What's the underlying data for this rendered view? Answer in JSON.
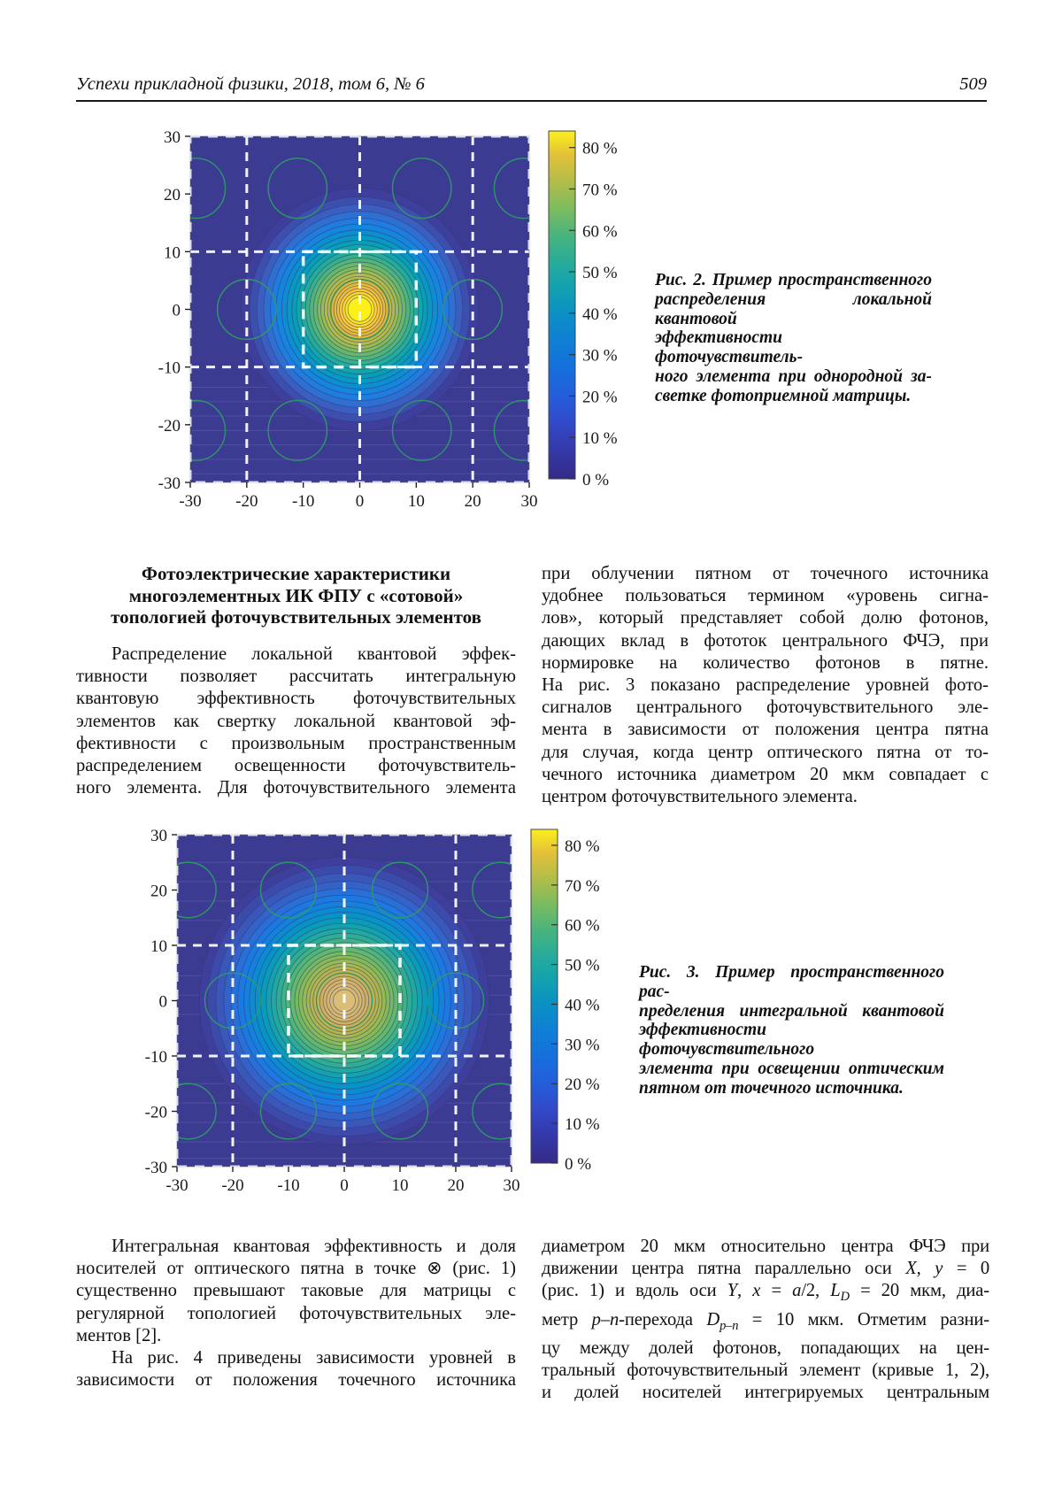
{
  "header": {
    "journal_title": "Успехи прикладной физики, 2018, том 6, № 6",
    "page_number": "509"
  },
  "section": {
    "heading_lines": [
      "Фотоэлектрические характеристики",
      "многоэлементных ИК ФПУ с «сотовой»",
      "топологией фоточувствительных элементов"
    ],
    "left_column_lines": [
      "Распределение локальной квантовой эффек-",
      "тивности позволяет рассчитать интегральную",
      "квантовую эффективность фоточувствительных",
      "элементов как свертку локальной квантовой эф-",
      "фективности с произвольным пространственным",
      "распределением освещенности фоточувствитель-",
      "ного элемента. Для фоточувствительного элемента"
    ],
    "right_column_lines": [
      "при облучении пятном от точечного источника",
      "удобнее пользоваться термином «уровень сигна-",
      "лов», который представляет собой долю фотонов,",
      "дающих вклад в фототок центрального ФЧЭ, при",
      "нормировке на количество фотонов в пятне.",
      "На рис. 3 показано распределение уровней фото-",
      "сигналов центрального фоточувствительного эле-",
      "мента в зависимости от положения центра пятна",
      "для случая, когда центр оптического пятна от то-",
      "чечного источника диаметром 20 мкм совпадает с",
      "центром фоточувствительного элемента."
    ],
    "bottom_left_para1_lines": [
      "Интегральная квантовая эффективность и доля",
      "носителей от оптического пятна в точке ⊗ (рис. 1)",
      "существенно превышают таковые для матрицы с",
      "регулярной топологией фоточувствительных эле-",
      "ментов [2]."
    ],
    "bottom_left_para2_lines": [
      "На рис. 4 приведены зависимости уровней в",
      "зависимости от положения точечного источника"
    ],
    "bottom_right_lines": [
      "диаметром 20 мкм относительно центра ФЧЭ при",
      "движении центра пятна параллельно оси <i>X</i>, <i>y</i> = 0",
      "(рис. 1) и вдоль оси <i>Y</i>, <i>x</i> = <i>a</i>/2, <i>L<sub>D</sub></i> = 20 мкм, диа-",
      "метр <i>p</i>–<i>n</i>-перехода <i>D<sub>p–n</sub></i> = 10 мкм. Отметим разни-",
      "цу между долей фотонов, попадающих на цен-",
      "тральный фоточувствительный элемент (кривые 1, 2),",
      "и долей носителей интегрируемых центральным"
    ]
  },
  "fig2_caption_lines": [
    "Рис. 2. Пример пространственного",
    "распределения локальной квантовой",
    "эффективности фоточувствитель-",
    "ного элемента при однородной за-",
    "светке фотоприемной матрицы."
  ],
  "fig3_caption_lines": [
    "Рис. 3. Пример пространственного рас-",
    "пределения интегральной квантовой",
    "эффективности фоточувствительного",
    "элемента при освещении оптическим",
    "пятном от точечного источника."
  ],
  "chart_data": [
    {
      "id": "fig2",
      "type": "contour",
      "description": "Пространственное распределение локальной квантовой эффективности фоточувствительного элемента; пик ~85 % в центре (0,0), сотовая топология элементов",
      "xlim": [
        -30,
        30
      ],
      "ylim": [
        -30,
        30
      ],
      "x_ticks": [
        -30,
        -20,
        -10,
        0,
        10,
        20,
        30
      ],
      "y_ticks": [
        30,
        20,
        10,
        0,
        -10,
        -20,
        -30
      ],
      "background": "#3b3b92",
      "peak_percent": 85,
      "colorbar": {
        "scale_max": 84,
        "ticks": [
          {
            "value": 80,
            "label": "80 %"
          },
          {
            "value": 70,
            "label": "70 %"
          },
          {
            "value": 60,
            "label": "60 %"
          },
          {
            "value": 50,
            "label": "50 %"
          },
          {
            "value": 40,
            "label": "40 %"
          },
          {
            "value": 30,
            "label": "30 %"
          },
          {
            "value": 20,
            "label": "20 %"
          },
          {
            "value": 10,
            "label": "10 %"
          },
          {
            "value": 0,
            "label": "0 %"
          }
        ],
        "gradient": [
          [
            "0",
            "#352a87"
          ],
          [
            "0.08",
            "#3438a8"
          ],
          [
            "0.16",
            "#3249c8"
          ],
          [
            "0.24",
            "#245edb"
          ],
          [
            "0.32",
            "#166fdc"
          ],
          [
            "0.4",
            "#0f80d4"
          ],
          [
            "0.48",
            "#0b91c3"
          ],
          [
            "0.55",
            "#13a1b0"
          ],
          [
            "0.62",
            "#27ab9b"
          ],
          [
            "0.7",
            "#49b47d"
          ],
          [
            "0.78",
            "#7ebc5e"
          ],
          [
            "0.86",
            "#b6bd48"
          ],
          [
            "0.93",
            "#e3c139"
          ],
          [
            "1",
            "#fbef1c"
          ]
        ]
      },
      "rings": [
        [
          21,
          "#3e3f9c"
        ],
        [
          19.5,
          "#3c4fae"
        ],
        [
          18.2,
          "#3a5fc0"
        ],
        [
          17,
          "#2e6fd2"
        ],
        [
          15.8,
          "#217ce0"
        ],
        [
          14.8,
          "#1585dd"
        ],
        [
          13.8,
          "#0e8ed2"
        ],
        [
          12.9,
          "#0997c4"
        ],
        [
          12,
          "#079fb8"
        ],
        [
          11.2,
          "#12a6ab"
        ],
        [
          10.4,
          "#23ac9c"
        ],
        [
          9.6,
          "#38b18b"
        ],
        [
          8.9,
          "#50b57a"
        ],
        [
          8.2,
          "#68b86b"
        ],
        [
          7.5,
          "#81bb5e"
        ],
        [
          6.9,
          "#99bc53"
        ],
        [
          6.3,
          "#b0bc4b"
        ],
        [
          5.7,
          "#c5bb45"
        ],
        [
          5.1,
          "#d8b940"
        ],
        [
          4.6,
          "#e8ba3b"
        ],
        [
          4.1,
          "#f3bf38"
        ],
        [
          3.6,
          "#fac937"
        ],
        [
          3.1,
          "#fdd62e"
        ],
        [
          2.6,
          "#fde423"
        ],
        [
          2.1,
          "#fbf01a"
        ]
      ],
      "green_circle_radius": 5.2,
      "green_circles": [
        [
          -29,
          21
        ],
        [
          -11,
          21
        ],
        [
          11,
          21
        ],
        [
          29,
          21
        ],
        [
          -20,
          0
        ],
        [
          0,
          0
        ],
        [
          20,
          0
        ],
        [
          -29,
          -21
        ],
        [
          -11,
          -21
        ],
        [
          11,
          -21
        ],
        [
          29,
          -21
        ]
      ],
      "dashed_vlines": [
        -20,
        0,
        20
      ],
      "dashed_hlines": [
        10,
        -10
      ],
      "dashed_square": {
        "x": -10,
        "y": -10,
        "w": 20,
        "h": 20
      },
      "faint_hlines": [
        -13.5,
        -16,
        -18.5,
        -21,
        -23.5,
        -26,
        -28.5
      ]
    },
    {
      "id": "fig3",
      "type": "contour",
      "description": "Пространственное распределение интегральной квантовой эффективности фоточувствительного элемента при освещении пятном от точечного источника; пик ~57 % в центре (0,0)",
      "xlim": [
        -30,
        30
      ],
      "ylim": [
        -30,
        30
      ],
      "x_ticks": [
        -30,
        -20,
        -10,
        0,
        10,
        20,
        30
      ],
      "y_ticks": [
        30,
        20,
        10,
        0,
        -10,
        -20,
        -30
      ],
      "background": "#3b3b92",
      "peak_percent": 57,
      "colorbar": {
        "scale_max": 84,
        "ticks": [
          {
            "value": 80,
            "label": "80 %"
          },
          {
            "value": 70,
            "label": "70 %"
          },
          {
            "value": 60,
            "label": "60 %"
          },
          {
            "value": 50,
            "label": "50 %"
          },
          {
            "value": 40,
            "label": "40 %"
          },
          {
            "value": 30,
            "label": "30 %"
          },
          {
            "value": 20,
            "label": "20 %"
          },
          {
            "value": 10,
            "label": "10 %"
          },
          {
            "value": 0,
            "label": "0 %"
          }
        ],
        "gradient": [
          [
            "0",
            "#352a87"
          ],
          [
            "0.08",
            "#3438a8"
          ],
          [
            "0.16",
            "#3249c8"
          ],
          [
            "0.24",
            "#245edb"
          ],
          [
            "0.32",
            "#166fdc"
          ],
          [
            "0.4",
            "#0f80d4"
          ],
          [
            "0.48",
            "#0b91c3"
          ],
          [
            "0.55",
            "#13a1b0"
          ],
          [
            "0.62",
            "#27ab9b"
          ],
          [
            "0.7",
            "#49b47d"
          ],
          [
            "0.78",
            "#7ebc5e"
          ],
          [
            "0.86",
            "#b6bd48"
          ],
          [
            "0.93",
            "#e3c139"
          ],
          [
            "1",
            "#fbef1c"
          ]
        ]
      },
      "rings": [
        [
          26,
          "#3e3f9c"
        ],
        [
          24.5,
          "#3c4bab"
        ],
        [
          23,
          "#3a57ba"
        ],
        [
          21.6,
          "#3363c9"
        ],
        [
          20.3,
          "#296fd8"
        ],
        [
          19.1,
          "#1d79e2"
        ],
        [
          18,
          "#1482dd"
        ],
        [
          17,
          "#0d8bd2"
        ],
        [
          16,
          "#0893c6"
        ],
        [
          15,
          "#0a9bba"
        ],
        [
          14,
          "#13a2ae"
        ],
        [
          13.1,
          "#20a8a1"
        ],
        [
          12.2,
          "#2ead94"
        ],
        [
          11.3,
          "#3fb286"
        ],
        [
          10.5,
          "#50b579"
        ],
        [
          9.7,
          "#62b86d"
        ],
        [
          8.9,
          "#74b962"
        ],
        [
          8.2,
          "#86ba59"
        ],
        [
          7.5,
          "#97ba52"
        ],
        [
          6.8,
          "#a6b84e"
        ],
        [
          6.2,
          "#b3b54e"
        ],
        [
          5.6,
          "#bfb254"
        ],
        [
          5.0,
          "#c8b05b"
        ],
        [
          4.4,
          "#ceb162"
        ],
        [
          3.8,
          "#d3b368"
        ],
        [
          3.2,
          "#d6b66d"
        ],
        [
          2.6,
          "#d8ba72"
        ],
        [
          2.0,
          "#dabd76"
        ]
      ],
      "green_circle_radius": 5,
      "green_circles": [
        [
          -28,
          20
        ],
        [
          -10,
          20
        ],
        [
          10,
          20
        ],
        [
          28,
          20
        ],
        [
          -20,
          0
        ],
        [
          0,
          0
        ],
        [
          20,
          0
        ],
        [
          -28,
          -20
        ],
        [
          -10,
          -20
        ],
        [
          10,
          -20
        ],
        [
          28,
          -20
        ]
      ],
      "dashed_vlines": [
        -20,
        0,
        20
      ],
      "dashed_hlines": [
        10,
        -10
      ],
      "dashed_square": {
        "x": -10,
        "y": -10,
        "w": 20,
        "h": 20
      },
      "faint_hlines": [
        25,
        21.5,
        18,
        14.5,
        4.5,
        1,
        -2.5,
        -15,
        -18.5,
        -22,
        -25.5,
        -28.5
      ]
    }
  ]
}
